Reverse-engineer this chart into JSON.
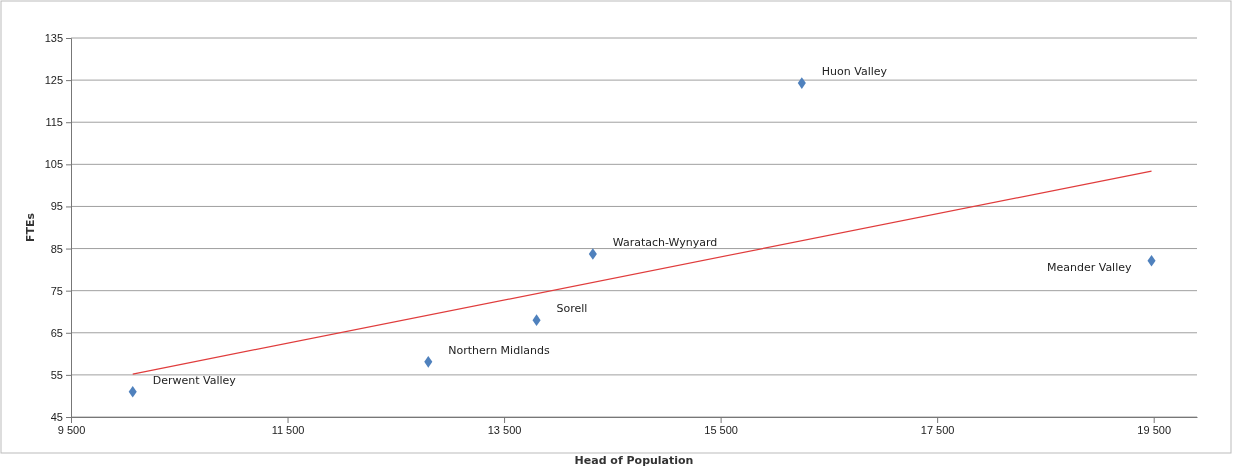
{
  "chart_data": {
    "type": "scatter",
    "xlabel": "Head of Population",
    "ylabel": "FTEs",
    "xlim": [
      9500,
      19900
    ],
    "xticks": [
      {
        "value": 9500,
        "label": "9 500"
      },
      {
        "value": 11500,
        "label": "11 500"
      },
      {
        "value": 13500,
        "label": "13 500"
      },
      {
        "value": 15500,
        "label": "15 500"
      },
      {
        "value": 17500,
        "label": "17 500"
      },
      {
        "value": 19500,
        "label": "19 500"
      }
    ],
    "ylim": [
      45,
      135
    ],
    "yticks": [
      45,
      55,
      65,
      75,
      85,
      95,
      105,
      115,
      125,
      135
    ],
    "grid": "y",
    "marker": "diamond",
    "series": [
      {
        "color": "#4f81bd",
        "x": [
          10070,
          12800,
          13800,
          14320,
          16250,
          19480
        ],
        "values": [
          51,
          58.1,
          68,
          83.7,
          124.3,
          82.1
        ]
      },
      {
        "type": "line",
        "color": "#e03c3c",
        "marker": "none",
        "x": [
          10070,
          19480
        ],
        "values": [
          55.2,
          103.4
        ]
      }
    ],
    "annotations": [
      {
        "text": "Derwent Valley",
        "x": 10070,
        "y": 51
      },
      {
        "text": "Northern Midlands",
        "x": 12800,
        "y": 58.1
      },
      {
        "text": "Sorell",
        "x": 13800,
        "y": 68
      },
      {
        "text": "Waratach-Wynyard",
        "x": 14320,
        "y": 83.7
      },
      {
        "text": "Huon Valley",
        "x": 16250,
        "y": 124.3
      },
      {
        "text": "Meander Valley",
        "x": 19480,
        "y": 82.1
      }
    ]
  }
}
